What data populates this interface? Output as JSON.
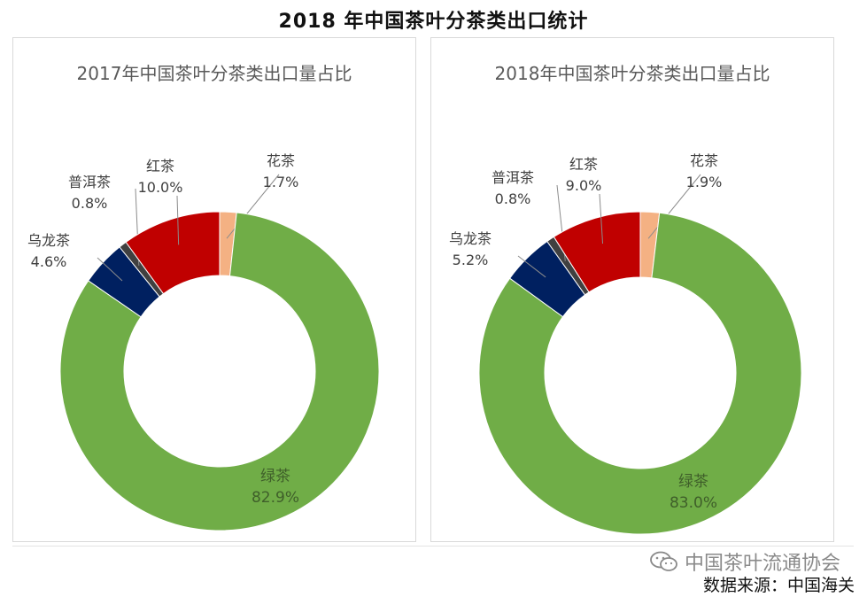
{
  "title": "2018 年中国茶叶分茶类出口统计",
  "chart_data": [
    {
      "type": "pie",
      "title": "2017年中国茶叶分茶类出口量占比",
      "slices": [
        {
          "label": "花茶",
          "value": 1.7,
          "display": "1.7%",
          "color": "#f4b183"
        },
        {
          "label": "绿茶",
          "value": 82.9,
          "display": "82.9%",
          "color": "#70ad47"
        },
        {
          "label": "乌龙茶",
          "value": 4.6,
          "display": "4.6%",
          "color": "#002060"
        },
        {
          "label": "普洱茶",
          "value": 0.8,
          "display": "0.8%",
          "color": "#404040"
        },
        {
          "label": "红茶",
          "value": 10.0,
          "display": "10.0%",
          "color": "#c00000"
        }
      ]
    },
    {
      "type": "pie",
      "title": "2018年中国茶叶分茶类出口量占比",
      "slices": [
        {
          "label": "花茶",
          "value": 1.9,
          "display": "1.9%",
          "color": "#f4b183"
        },
        {
          "label": "绿茶",
          "value": 83.0,
          "display": "83.0%",
          "color": "#70ad47"
        },
        {
          "label": "乌龙茶",
          "value": 5.2,
          "display": "5.2%",
          "color": "#002060"
        },
        {
          "label": "普洱茶",
          "value": 0.8,
          "display": "0.8%",
          "color": "#404040"
        },
        {
          "label": "红茶",
          "value": 9.0,
          "display": "9.0%",
          "color": "#c00000"
        }
      ]
    }
  ],
  "watermark": "中国茶叶流通协会",
  "source": "数据来源：中国海关"
}
